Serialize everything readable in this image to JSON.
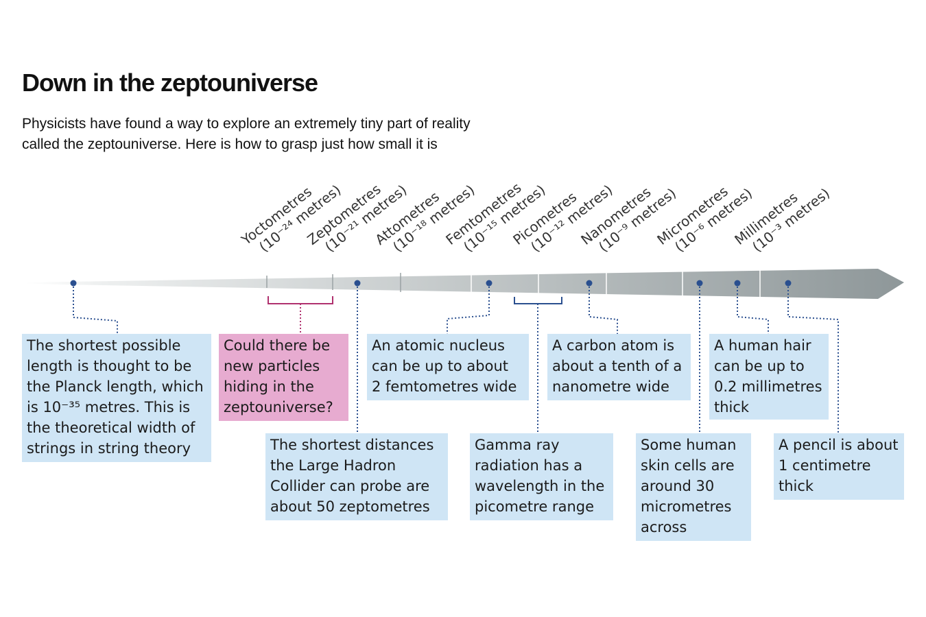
{
  "title": "Down in the zeptouniverse",
  "subtitle": {
    "line1": "Physicists have found a way to explore an extremely tiny part of reality",
    "line2": "called the zeptouniverse. Here is how to grasp just how small it is"
  },
  "colors": {
    "arrow_light": "#eef0f0",
    "arrow_dark": "#8e9799",
    "box_blue": "#cfe5f5",
    "box_pink": "#e7abd0",
    "dot_blue": "#2a4f8f",
    "bracket_pink": "#b0306e",
    "bracket_blue": "#2a4f8f"
  },
  "scale": [
    {
      "name": "Yoctometres",
      "exp": "-24",
      "unit": "metres"
    },
    {
      "name": "Zeptometres",
      "exp": "-21",
      "unit": "metres"
    },
    {
      "name": "Attometres",
      "exp": "-18",
      "unit": "metres"
    },
    {
      "name": "Femtometres",
      "exp": "-15",
      "unit": "metres"
    },
    {
      "name": "Picometres",
      "exp": "-12",
      "unit": "metres"
    },
    {
      "name": "Nanometres",
      "exp": "-9",
      "unit": "metres"
    },
    {
      "name": "Micrometres",
      "exp": "-6",
      "unit": "metres"
    },
    {
      "name": "Millimetres",
      "exp": "-3",
      "unit": "metres"
    }
  ],
  "callouts": {
    "planck": [
      "The shortest possible",
      "length is thought to be",
      "the Planck length, which",
      "is 10⁻³⁵ metres. This is",
      "the theoretical width of",
      "strings in string theory"
    ],
    "zepto": [
      "Could there be",
      "new particles",
      "hiding in the",
      "zeptouniverse?"
    ],
    "lhc": [
      "The shortest distances",
      "the Large Hadron",
      "Collider can probe are",
      "about 50 zeptometres"
    ],
    "nucleus": [
      "An atomic nucleus",
      "can be up to about",
      "2 femtometres wide"
    ],
    "gamma": [
      "Gamma ray",
      "radiation has a",
      "wavelength in the",
      "picometre range"
    ],
    "carbon": [
      "A carbon atom is",
      "about a tenth of a",
      "nanometre wide"
    ],
    "skin": [
      "Some human",
      "skin cells are",
      "around 30",
      "micrometres",
      "across"
    ],
    "hair": [
      "A human hair",
      "can be up to",
      "0.2 millimetres",
      "thick"
    ],
    "pencil": [
      "A pencil is about",
      "1 centimetre",
      "thick"
    ]
  }
}
